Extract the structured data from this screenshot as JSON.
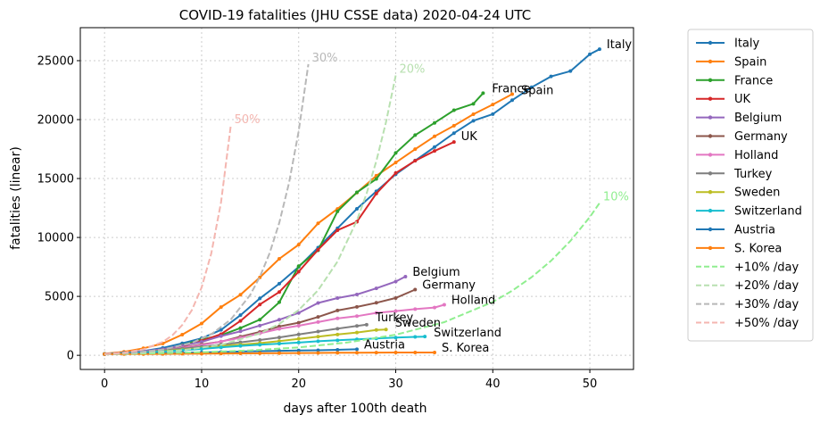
{
  "chart_data": {
    "type": "line",
    "title": "COVID-19 fatalities (JHU CSSE data) 2020-04-24 UTC",
    "xlabel": "days after 100th death",
    "ylabel": "fatalities (linear)",
    "xlim": [
      -2.5,
      54.5
    ],
    "ylim": [
      -1200,
      27800
    ],
    "xticks": [
      0,
      10,
      20,
      30,
      40,
      50
    ],
    "yticks": [
      0,
      5000,
      10000,
      15000,
      20000,
      25000
    ],
    "xtick_labels": [
      "0",
      "10",
      "20",
      "30",
      "40",
      "50"
    ],
    "ytick_labels": [
      "0",
      "5000",
      "10000",
      "15000",
      "20000",
      "25000"
    ],
    "grid": true,
    "legend_position": "outside-right",
    "series": [
      {
        "name": "Italy",
        "label": "Italy",
        "color": "#1f77b4",
        "x": [
          0,
          2,
          4,
          6,
          8,
          10,
          12,
          14,
          16,
          18,
          20,
          22,
          24,
          26,
          28,
          30,
          32,
          34,
          36,
          38,
          40,
          42,
          44,
          46,
          48,
          50,
          51
        ],
        "y": [
          107,
          197,
          366,
          631,
          1016,
          1441,
          2158,
          3405,
          4825,
          6077,
          7503,
          9134,
          10779,
          12428,
          13915,
          15362,
          16523,
          17669,
          18849,
          19899,
          20465,
          21645,
          22745,
          23660,
          24114,
          25549,
          25969
        ]
      },
      {
        "name": "Spain",
        "label": "Spain",
        "color": "#ff7f0e",
        "x": [
          0,
          2,
          4,
          6,
          8,
          10,
          12,
          14,
          16,
          18,
          20,
          22,
          24,
          26,
          28,
          30,
          32,
          34,
          36,
          38,
          40,
          42
        ],
        "y": [
          133,
          297,
          598,
          1002,
          1756,
          2696,
          4089,
          5138,
          6606,
          8189,
          9387,
          11198,
          12418,
          13798,
          15238,
          16353,
          17489,
          18579,
          19478,
          20453,
          21282,
          22157
        ]
      },
      {
        "name": "France",
        "label": "France",
        "color": "#2ca02c",
        "x": [
          0,
          2,
          4,
          6,
          8,
          10,
          12,
          14,
          16,
          18,
          20,
          22,
          24,
          26,
          28,
          30,
          32,
          34,
          36,
          38,
          39
        ],
        "y": [
          120,
          162,
          271,
          451,
          860,
          1333,
          1700,
          2314,
          3024,
          4503,
          7560,
          8911,
          12210,
          13832,
          14967,
          17167,
          18681,
          19718,
          20796,
          21340,
          22245
        ]
      },
      {
        "name": "UK",
        "label": "UK",
        "color": "#d62728",
        "x": [
          0,
          2,
          4,
          6,
          8,
          10,
          12,
          14,
          16,
          18,
          20,
          22,
          24,
          26,
          28,
          30,
          32,
          34,
          36
        ],
        "y": [
          104,
          177,
          281,
          465,
          759,
          1228,
          1789,
          2921,
          4313,
          5373,
          7097,
          8958,
          10612,
          11329,
          13729,
          15464,
          16509,
          17337,
          18100
        ]
      },
      {
        "name": "Belgium",
        "label": "Belgium",
        "color": "#9467bd",
        "x": [
          0,
          2,
          4,
          6,
          8,
          10,
          12,
          14,
          16,
          18,
          20,
          22,
          24,
          26,
          28,
          30,
          31
        ],
        "y": [
          122,
          220,
          353,
          513,
          828,
          1143,
          1632,
          2035,
          2523,
          3019,
          3600,
          4440,
          4857,
          5163,
          5683,
          6262,
          6679
        ]
      },
      {
        "name": "Germany",
        "label": "Germany",
        "color": "#8c564b",
        "x": [
          0,
          2,
          4,
          6,
          8,
          10,
          12,
          14,
          16,
          18,
          20,
          22,
          24,
          26,
          28,
          30,
          32
        ],
        "y": [
          123,
          206,
          267,
          433,
          645,
          920,
          1158,
          1584,
          1983,
          2451,
          2767,
          3254,
          3804,
          4110,
          4459,
          4862,
          5575
        ]
      },
      {
        "name": "Holland",
        "label": "Holland",
        "color": "#e377c2",
        "x": [
          0,
          2,
          4,
          6,
          8,
          10,
          12,
          14,
          16,
          18,
          20,
          22,
          24,
          26,
          28,
          30,
          32,
          34,
          35
        ],
        "y": [
          106,
          179,
          276,
          434,
          639,
          864,
          1173,
          1487,
          1867,
          2248,
          2511,
          2823,
          3134,
          3321,
          3601,
          3751,
          3916,
          4054,
          4289
        ]
      },
      {
        "name": "Turkey",
        "label": "Turkey",
        "color": "#7f7f7f",
        "x": [
          0,
          2,
          4,
          6,
          8,
          10,
          12,
          14,
          16,
          18,
          20,
          22,
          24,
          26,
          27
        ],
        "y": [
          108,
          168,
          277,
          425,
          574,
          725,
          908,
          1101,
          1296,
          1518,
          1769,
          2017,
          2259,
          2491,
          2600
        ]
      },
      {
        "name": "Sweden",
        "label": "Sweden",
        "color": "#bcbd22",
        "x": [
          0,
          2,
          4,
          6,
          8,
          10,
          12,
          14,
          16,
          18,
          20,
          22,
          24,
          26,
          28,
          29
        ],
        "y": [
          105,
          146,
          239,
          358,
          477,
          591,
          793,
          899,
          1033,
          1203,
          1400,
          1580,
          1765,
          1937,
          2152,
          2192
        ]
      },
      {
        "name": "Switzerland",
        "label": "Switzerland",
        "color": "#17becf",
        "x": [
          0,
          2,
          4,
          6,
          8,
          10,
          12,
          14,
          16,
          18,
          20,
          22,
          24,
          26,
          28,
          30,
          32,
          33
        ],
        "y": [
          120,
          180,
          248,
          320,
          430,
          540,
          675,
          800,
          895,
          990,
          1080,
          1190,
          1275,
          1360,
          1430,
          1500,
          1560,
          1590
        ]
      },
      {
        "name": "Austria",
        "label": "Austria",
        "color": "#1f77b4",
        "x": [
          0,
          2,
          4,
          6,
          8,
          10,
          12,
          14,
          16,
          18,
          20,
          22,
          24,
          26
        ],
        "y": [
          108,
          128,
          158,
          186,
          220,
          243,
          273,
          319,
          350,
          384,
          410,
          431,
          464,
          510
        ]
      },
      {
        "name": "S. Korea",
        "label": "S. Korea",
        "color": "#ff7f0e",
        "x": [
          0,
          2,
          4,
          6,
          8,
          10,
          12,
          14,
          16,
          18,
          20,
          22,
          24,
          26,
          28,
          30,
          32,
          34
        ],
        "y": [
          102,
          104,
          110,
          120,
          131,
          139,
          152,
          163,
          174,
          186,
          192,
          204,
          214,
          222,
          230,
          236,
          240,
          242
        ]
      },
      {
        "name": "+10% /day",
        "label": "10%",
        "color": "#90ee90",
        "dashed": true,
        "x": [
          0,
          5,
          10,
          15,
          20,
          25,
          30,
          35,
          40,
          42,
          44,
          46,
          48,
          50,
          51
        ],
        "y": [
          100,
          161,
          259,
          418,
          673,
          1083,
          1745,
          2810,
          4526,
          5476,
          6626,
          8017,
          9701,
          11739,
          12913
        ]
      },
      {
        "name": "+20% /day",
        "label": "20%",
        "color": "#b8e0b0",
        "dashed": true,
        "x": [
          0,
          4,
          8,
          12,
          16,
          18,
          20,
          22,
          24,
          26,
          27,
          28,
          29,
          30
        ],
        "y": [
          100,
          207,
          430,
          892,
          1849,
          2662,
          3834,
          5521,
          7950,
          11448,
          13737,
          16485,
          19781,
          23738
        ]
      },
      {
        "name": "+30% /day",
        "label": "30%",
        "color": "#b8b8b8",
        "dashed": true,
        "x": [
          0,
          3,
          6,
          9,
          11,
          13,
          15,
          16,
          17,
          18,
          19,
          20,
          21
        ],
        "y": [
          100,
          220,
          483,
          1060,
          1792,
          3029,
          5119,
          6654,
          8650,
          11246,
          14619,
          19005,
          24706
        ]
      },
      {
        "name": "+50% /day",
        "label": "50%",
        "color": "#f4b6b0",
        "dashed": true,
        "x": [
          0,
          2,
          4,
          6,
          7,
          8,
          9,
          10,
          11,
          12,
          13
        ],
        "y": [
          100,
          225,
          506,
          1139,
          1709,
          2563,
          3844,
          5767,
          8650,
          12975,
          19462
        ]
      }
    ]
  }
}
